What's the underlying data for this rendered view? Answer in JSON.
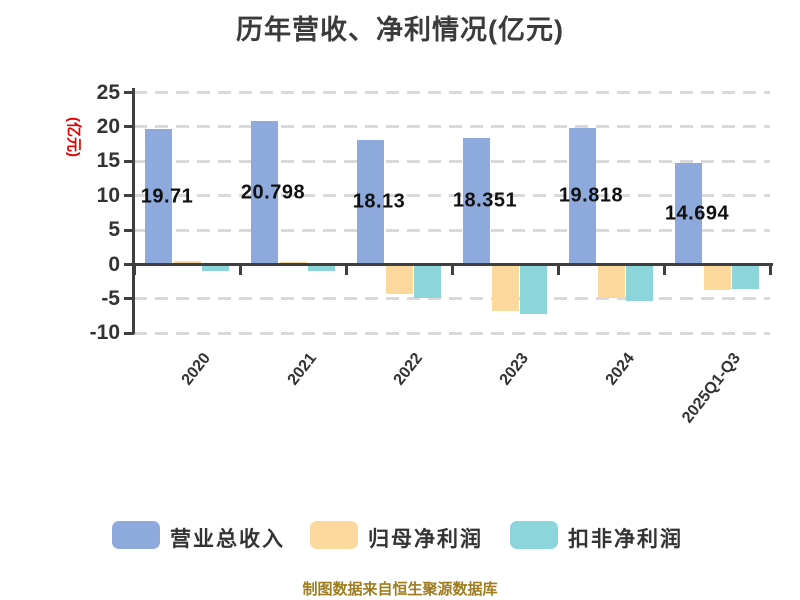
{
  "title": "历年营收、净利情况(亿元)",
  "y_axis_label": "(亿元)",
  "caption": "制图数据来自恒生聚源数据库",
  "legend": {
    "items": [
      {
        "label": "营业总收入",
        "color": "#8EA9DB"
      },
      {
        "label": "归母净利润",
        "color": "#FBD89B"
      },
      {
        "label": "扣非净利润",
        "color": "#8CD5DA"
      }
    ]
  },
  "colors": {
    "revenue_bar": "#8EA9DB",
    "net_profit_bar": "#FBD89B",
    "deducted_profit_bar": "#8CD5DA",
    "axis": "#3f3f3f",
    "grid": "#d9d9d9",
    "y_axis_label": "#e60000",
    "caption": "#9e7c1f",
    "title_text": "#3b3b3b"
  },
  "chart_data": {
    "type": "bar",
    "title": "历年营收、净利情况(亿元)",
    "categories": [
      "2020",
      "2021",
      "2022",
      "2023",
      "2024",
      "2025Q1-Q3"
    ],
    "series": [
      {
        "name": "营业总收入",
        "color": "#8EA9DB",
        "values": [
          19.71,
          20.798,
          18.13,
          18.351,
          19.818,
          14.694
        ],
        "labels": [
          "19.71",
          "20.798",
          "18.13",
          "18.351",
          "19.818",
          "14.694"
        ]
      },
      {
        "name": "归母净利润",
        "color": "#FBD89B",
        "values": [
          0.5,
          0.35,
          -4.3,
          -6.7,
          -4.9,
          -3.7
        ]
      },
      {
        "name": "扣非净利润",
        "color": "#8CD5DA",
        "values": [
          -0.9,
          -0.9,
          -4.8,
          -7.2,
          -5.3,
          -3.6
        ]
      }
    ],
    "ylabel": "(亿元)",
    "ylim": [
      -10,
      25
    ],
    "yticks": [
      25,
      20,
      15,
      10,
      5,
      0,
      -5,
      -10
    ],
    "grid": "horizontal-dashed",
    "legend_position": "bottom"
  }
}
